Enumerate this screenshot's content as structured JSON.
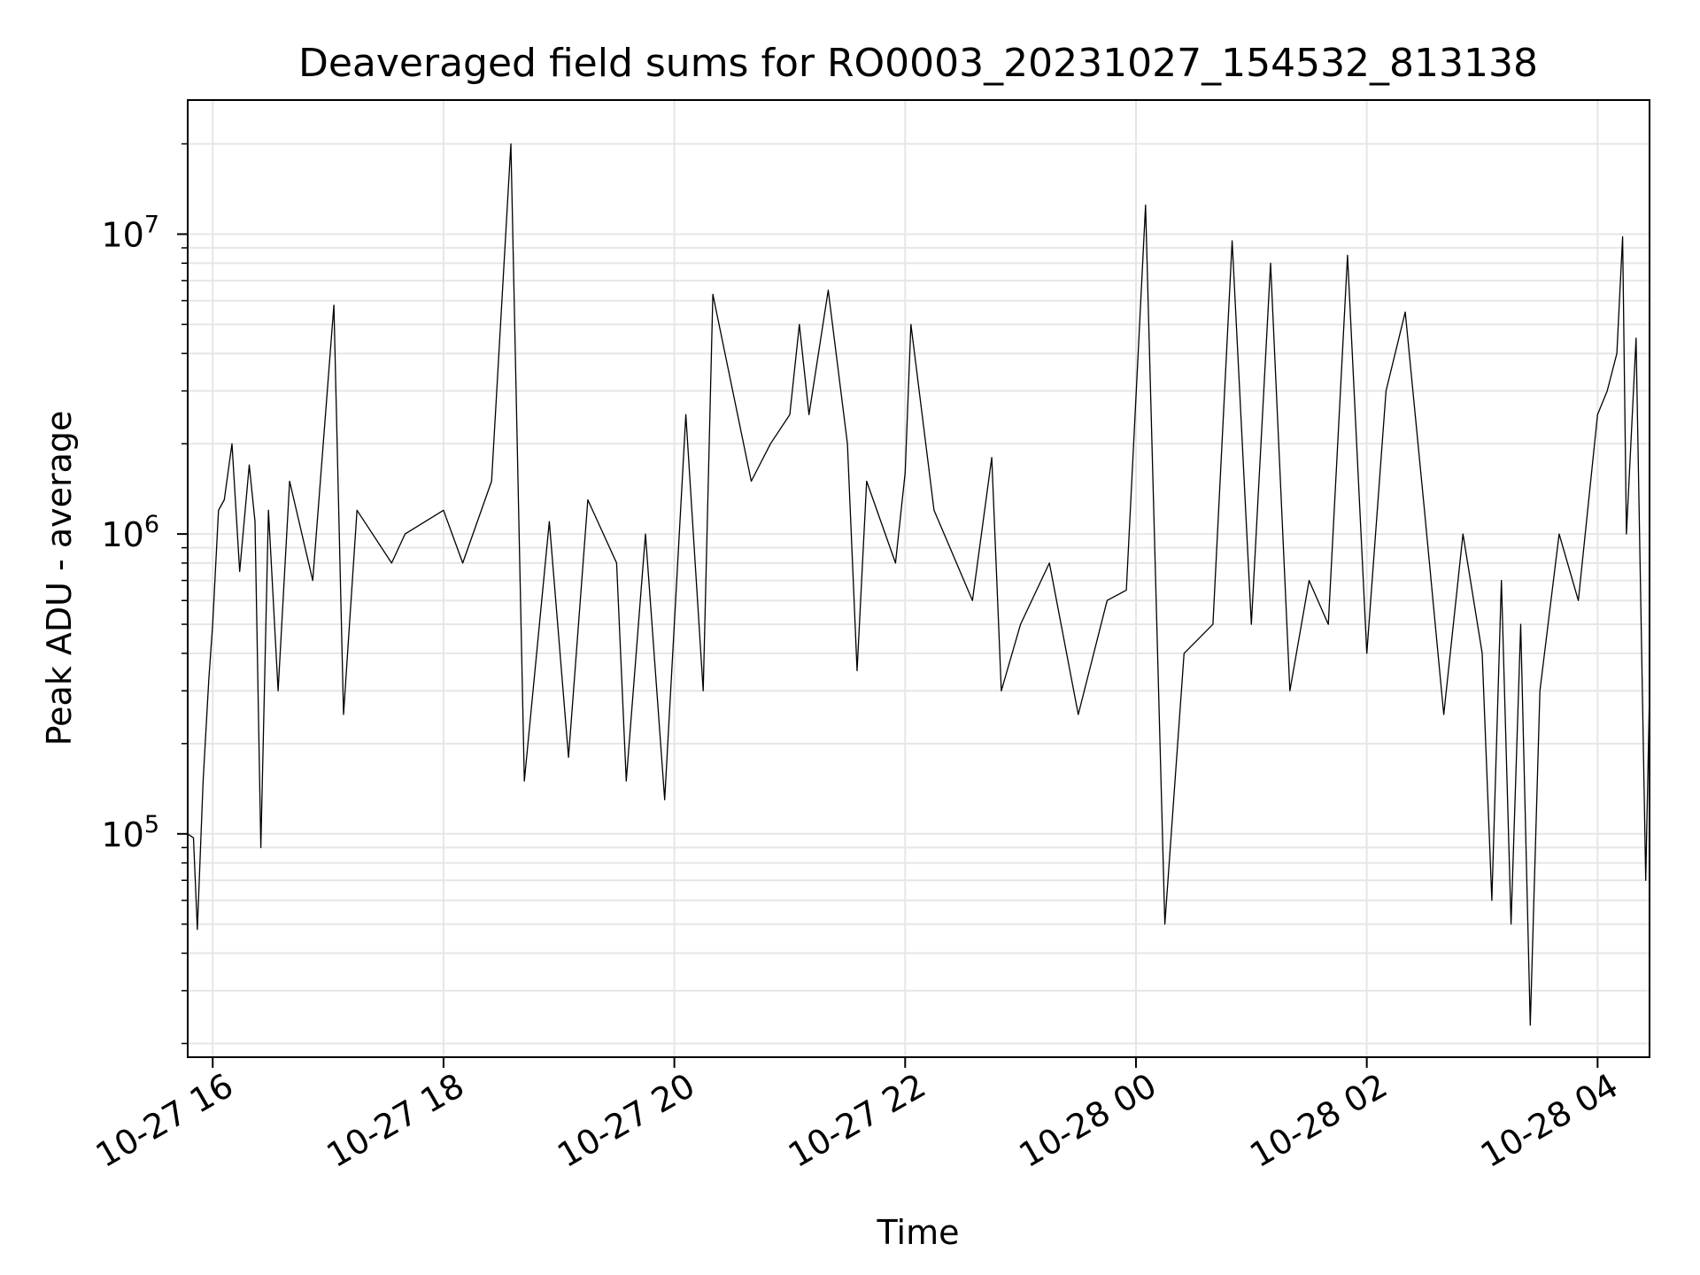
{
  "chart_data": {
    "type": "line",
    "title": "Deaveraged field sums for RO0003_20231027_154532_813138",
    "xlabel": "Time",
    "ylabel": "Peak ADU - average",
    "yscale": "log",
    "ylim": [
      18000,
      28000000
    ],
    "xlim": [
      "2023-10-27 15:47",
      "2023-10-28 04:27"
    ],
    "grid": true,
    "line_color": "#000000",
    "grid_color": "#e6e6e6",
    "x_ticks": [
      {
        "value": "2023-10-27 16:00",
        "label": "10-27 16"
      },
      {
        "value": "2023-10-27 18:00",
        "label": "10-27 18"
      },
      {
        "value": "2023-10-27 20:00",
        "label": "10-27 20"
      },
      {
        "value": "2023-10-27 22:00",
        "label": "10-27 22"
      },
      {
        "value": "2023-10-28 00:00",
        "label": "10-28 00"
      },
      {
        "value": "2023-10-28 02:00",
        "label": "10-28 02"
      },
      {
        "value": "2023-10-28 04:00",
        "label": "10-28 04"
      }
    ],
    "y_ticks": [
      {
        "value": 100000,
        "label": "10",
        "exp": "5"
      },
      {
        "value": 1000000,
        "label": "10",
        "exp": "6"
      },
      {
        "value": 10000000,
        "label": "10",
        "exp": "7"
      }
    ],
    "series": [
      {
        "x": [
          "2023-10-27 15:47",
          "2023-10-27 15:50",
          "2023-10-27 15:52",
          "2023-10-27 15:55",
          "2023-10-27 15:58",
          "2023-10-27 16:00",
          "2023-10-27 16:03",
          "2023-10-27 16:06",
          "2023-10-27 16:10",
          "2023-10-27 16:14",
          "2023-10-27 16:19",
          "2023-10-27 16:22",
          "2023-10-27 16:25",
          "2023-10-27 16:29",
          "2023-10-27 16:34",
          "2023-10-27 16:40",
          "2023-10-27 16:52",
          "2023-10-27 17:03",
          "2023-10-27 17:08",
          "2023-10-27 17:15",
          "2023-10-27 17:33",
          "2023-10-27 17:40",
          "2023-10-27 18:00",
          "2023-10-27 18:10",
          "2023-10-27 18:25",
          "2023-10-27 18:35",
          "2023-10-27 18:42",
          "2023-10-27 18:55",
          "2023-10-27 19:05",
          "2023-10-27 19:15",
          "2023-10-27 19:30",
          "2023-10-27 19:35",
          "2023-10-27 19:45",
          "2023-10-27 19:55",
          "2023-10-27 20:06",
          "2023-10-27 20:15",
          "2023-10-27 20:20",
          "2023-10-27 20:40",
          "2023-10-27 20:50",
          "2023-10-27 21:00",
          "2023-10-27 21:05",
          "2023-10-27 21:10",
          "2023-10-27 21:20",
          "2023-10-27 21:30",
          "2023-10-27 21:35",
          "2023-10-27 21:40",
          "2023-10-27 21:55",
          "2023-10-27 22:00",
          "2023-10-27 22:03",
          "2023-10-27 22:15",
          "2023-10-27 22:35",
          "2023-10-27 22:45",
          "2023-10-27 22:50",
          "2023-10-27 23:00",
          "2023-10-27 23:15",
          "2023-10-27 23:30",
          "2023-10-27 23:45",
          "2023-10-27 23:55",
          "2023-10-28 00:05",
          "2023-10-28 00:15",
          "2023-10-28 00:25",
          "2023-10-28 00:40",
          "2023-10-28 00:50",
          "2023-10-28 01:00",
          "2023-10-28 01:10",
          "2023-10-28 01:20",
          "2023-10-28 01:30",
          "2023-10-28 01:40",
          "2023-10-28 01:50",
          "2023-10-28 02:00",
          "2023-10-28 02:10",
          "2023-10-28 02:20",
          "2023-10-28 02:30",
          "2023-10-28 02:40",
          "2023-10-28 02:50",
          "2023-10-28 03:00",
          "2023-10-28 03:05",
          "2023-10-28 03:10",
          "2023-10-28 03:15",
          "2023-10-28 03:20",
          "2023-10-28 03:25",
          "2023-10-28 03:30",
          "2023-10-28 03:40",
          "2023-10-28 03:50",
          "2023-10-28 04:00",
          "2023-10-28 04:05",
          "2023-10-28 04:10",
          "2023-10-28 04:13",
          "2023-10-28 04:15",
          "2023-10-28 04:20",
          "2023-10-28 04:25",
          "2023-10-28 04:27"
        ],
        "y": [
          100000,
          97000,
          48000,
          150000,
          330000,
          500000,
          1200000,
          1300000,
          2000000,
          750000,
          1700000,
          1100000,
          90000,
          1200000,
          300000,
          1500000,
          700000,
          5800000,
          250000,
          1200000,
          800000,
          1000000,
          1200000,
          800000,
          1500000,
          20000000,
          150000,
          1100000,
          180000,
          1300000,
          800000,
          150000,
          1000000,
          130000,
          2500000,
          300000,
          6300000,
          1500000,
          2000000,
          2500000,
          5000000,
          2500000,
          6500000,
          2000000,
          350000,
          1500000,
          800000,
          1600000,
          5000000,
          1200000,
          600000,
          1800000,
          300000,
          500000,
          800000,
          250000,
          600000,
          650000,
          12500000,
          50000,
          400000,
          500000,
          9500000,
          500000,
          8000000,
          300000,
          700000,
          500000,
          8500000,
          400000,
          3000000,
          5500000,
          1200000,
          250000,
          1000000,
          400000,
          60000,
          700000,
          50000,
          500000,
          23000,
          300000,
          1000000,
          600000,
          2500000,
          3000000,
          4000000,
          9800000,
          1000000,
          4500000,
          70000,
          300000
        ]
      }
    ]
  }
}
